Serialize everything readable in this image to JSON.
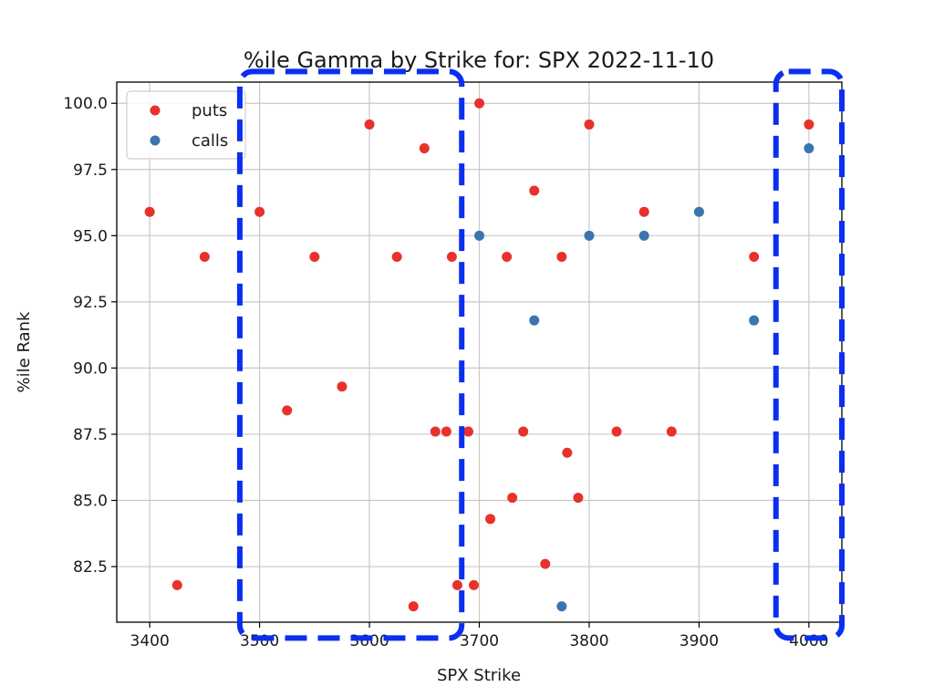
{
  "chart_data": {
    "type": "scatter",
    "title": "%ile Gamma by Strike for: SPX 2022-11-10",
    "xlabel": "SPX Strike",
    "ylabel": "%ile Rank",
    "xlim": [
      3370,
      4030
    ],
    "ylim": [
      80.4,
      100.8
    ],
    "xticks": [
      3400,
      3500,
      3600,
      3700,
      3800,
      3900,
      4000
    ],
    "xtick_labels": [
      "3400",
      "3500",
      "3600",
      "3700",
      "3800",
      "3900",
      "4000"
    ],
    "yticks": [
      82.5,
      85.0,
      87.5,
      90.0,
      92.5,
      95.0,
      97.5,
      100.0
    ],
    "ytick_labels": [
      "82.5",
      "85.0",
      "87.5",
      "90.0",
      "92.5",
      "95.0",
      "97.5",
      "100.0"
    ],
    "grid": true,
    "legend_position": "top-left",
    "series": [
      {
        "name": "puts",
        "color": "#e8312b",
        "points": [
          {
            "x": 3400,
            "y": 95.9
          },
          {
            "x": 3425,
            "y": 81.8
          },
          {
            "x": 3450,
            "y": 94.2
          },
          {
            "x": 3500,
            "y": 95.9
          },
          {
            "x": 3525,
            "y": 88.4
          },
          {
            "x": 3550,
            "y": 94.2
          },
          {
            "x": 3575,
            "y": 89.3
          },
          {
            "x": 3600,
            "y": 99.2
          },
          {
            "x": 3625,
            "y": 94.2
          },
          {
            "x": 3640,
            "y": 81.0
          },
          {
            "x": 3650,
            "y": 98.3
          },
          {
            "x": 3660,
            "y": 87.6
          },
          {
            "x": 3670,
            "y": 87.6
          },
          {
            "x": 3675,
            "y": 94.2
          },
          {
            "x": 3680,
            "y": 81.8
          },
          {
            "x": 3690,
            "y": 87.6
          },
          {
            "x": 3695,
            "y": 81.8
          },
          {
            "x": 3700,
            "y": 100.0
          },
          {
            "x": 3710,
            "y": 84.3
          },
          {
            "x": 3725,
            "y": 94.2
          },
          {
            "x": 3730,
            "y": 85.1
          },
          {
            "x": 3740,
            "y": 87.6
          },
          {
            "x": 3750,
            "y": 96.7
          },
          {
            "x": 3760,
            "y": 82.6
          },
          {
            "x": 3775,
            "y": 94.2
          },
          {
            "x": 3780,
            "y": 86.8
          },
          {
            "x": 3790,
            "y": 85.1
          },
          {
            "x": 3800,
            "y": 99.2
          },
          {
            "x": 3825,
            "y": 87.6
          },
          {
            "x": 3850,
            "y": 95.9
          },
          {
            "x": 3875,
            "y": 87.6
          },
          {
            "x": 3950,
            "y": 94.2
          },
          {
            "x": 4000,
            "y": 99.2
          }
        ]
      },
      {
        "name": "calls",
        "color": "#3b75af",
        "points": [
          {
            "x": 3700,
            "y": 95.0
          },
          {
            "x": 3750,
            "y": 91.8
          },
          {
            "x": 3775,
            "y": 81.0
          },
          {
            "x": 3800,
            "y": 95.0
          },
          {
            "x": 3850,
            "y": 95.0
          },
          {
            "x": 3900,
            "y": 95.9
          },
          {
            "x": 3950,
            "y": 91.8
          },
          {
            "x": 4000,
            "y": 98.3
          }
        ]
      }
    ],
    "annotations": [
      {
        "type": "dashed-rectangle",
        "color": "#0a2ff0",
        "x_range": [
          3482,
          3684
        ],
        "y_range": [
          79.8,
          101.2
        ]
      },
      {
        "type": "dashed-rectangle",
        "color": "#0a2ff0",
        "x_range": [
          3970,
          4030
        ],
        "y_range": [
          79.8,
          101.2
        ]
      }
    ]
  }
}
